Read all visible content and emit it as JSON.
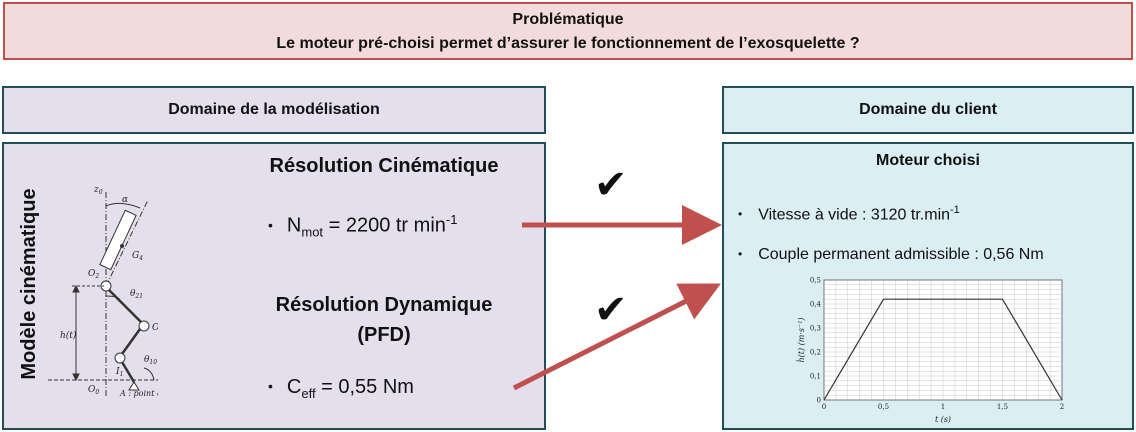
{
  "problem": {
    "title": "Problématique",
    "question": "Le moteur pré-choisi permet d’assurer le fonctionnement de l’exosquelette ?"
  },
  "model": {
    "header": "Domaine de la modélisation",
    "vertical_label": "Modèle cinématique",
    "cinematic_title": "Résolution Cinématique",
    "nmot_label": "N",
    "nmot_sub": "mot",
    "nmot_value": "= 2200 tr min",
    "nmot_sup": "-1",
    "dynamic_title_1": "Résolution Dynamique",
    "dynamic_title_2": "(PFD)",
    "ceff_label": "C",
    "ceff_sub": "eff",
    "ceff_value": "= 0,55 Nm",
    "bullet": "•"
  },
  "kinematic_labels": {
    "z0": "z",
    "z0_sub": "0",
    "alpha": "α",
    "g4": "G",
    "g4_sub": "4",
    "o2": "O",
    "o2_sub": "2",
    "theta21": "θ",
    "theta21_sub": "21",
    "o1": "O",
    "o1_sub": "1",
    "h": "h(t)",
    "theta10": "θ",
    "theta10_sub": "10",
    "i1": "I",
    "i1_sub": "1",
    "o0": "O",
    "o0_sub": "0",
    "a_point": "A : point c"
  },
  "client": {
    "header": "Domaine du client",
    "motor_title": "Moteur choisi",
    "speed_text": "Vitesse à vide : 3120 tr.min",
    "speed_sup": "-1",
    "torque_text": "Couple permanent admissible : 0,56 Nm",
    "bullet": "•"
  },
  "checkmarks": [
    "✔",
    "✔"
  ],
  "colors": {
    "problem_bg": "#f2dcdb",
    "problem_border": "#c0504d",
    "model_bg": "#e4dfec",
    "client_bg": "#daeef3",
    "box_border": "#1f4e5f",
    "arrow": "#c0504d"
  },
  "chart_data": {
    "type": "line",
    "x": [
      0,
      0.5,
      1.5,
      2
    ],
    "y": [
      0,
      0.42,
      0.42,
      0
    ],
    "xlim": [
      0,
      2
    ],
    "ylim": [
      0,
      0.5
    ],
    "xticks": [
      "0",
      "0,5",
      "1",
      "1,5",
      "2"
    ],
    "yticks": [
      "0",
      "0,1",
      "0,2",
      "0,3",
      "0,4",
      "0,5"
    ],
    "xlabel": "t (s)",
    "ylabel": "ḣ(t) (m·s⁻¹)",
    "grid": true
  }
}
